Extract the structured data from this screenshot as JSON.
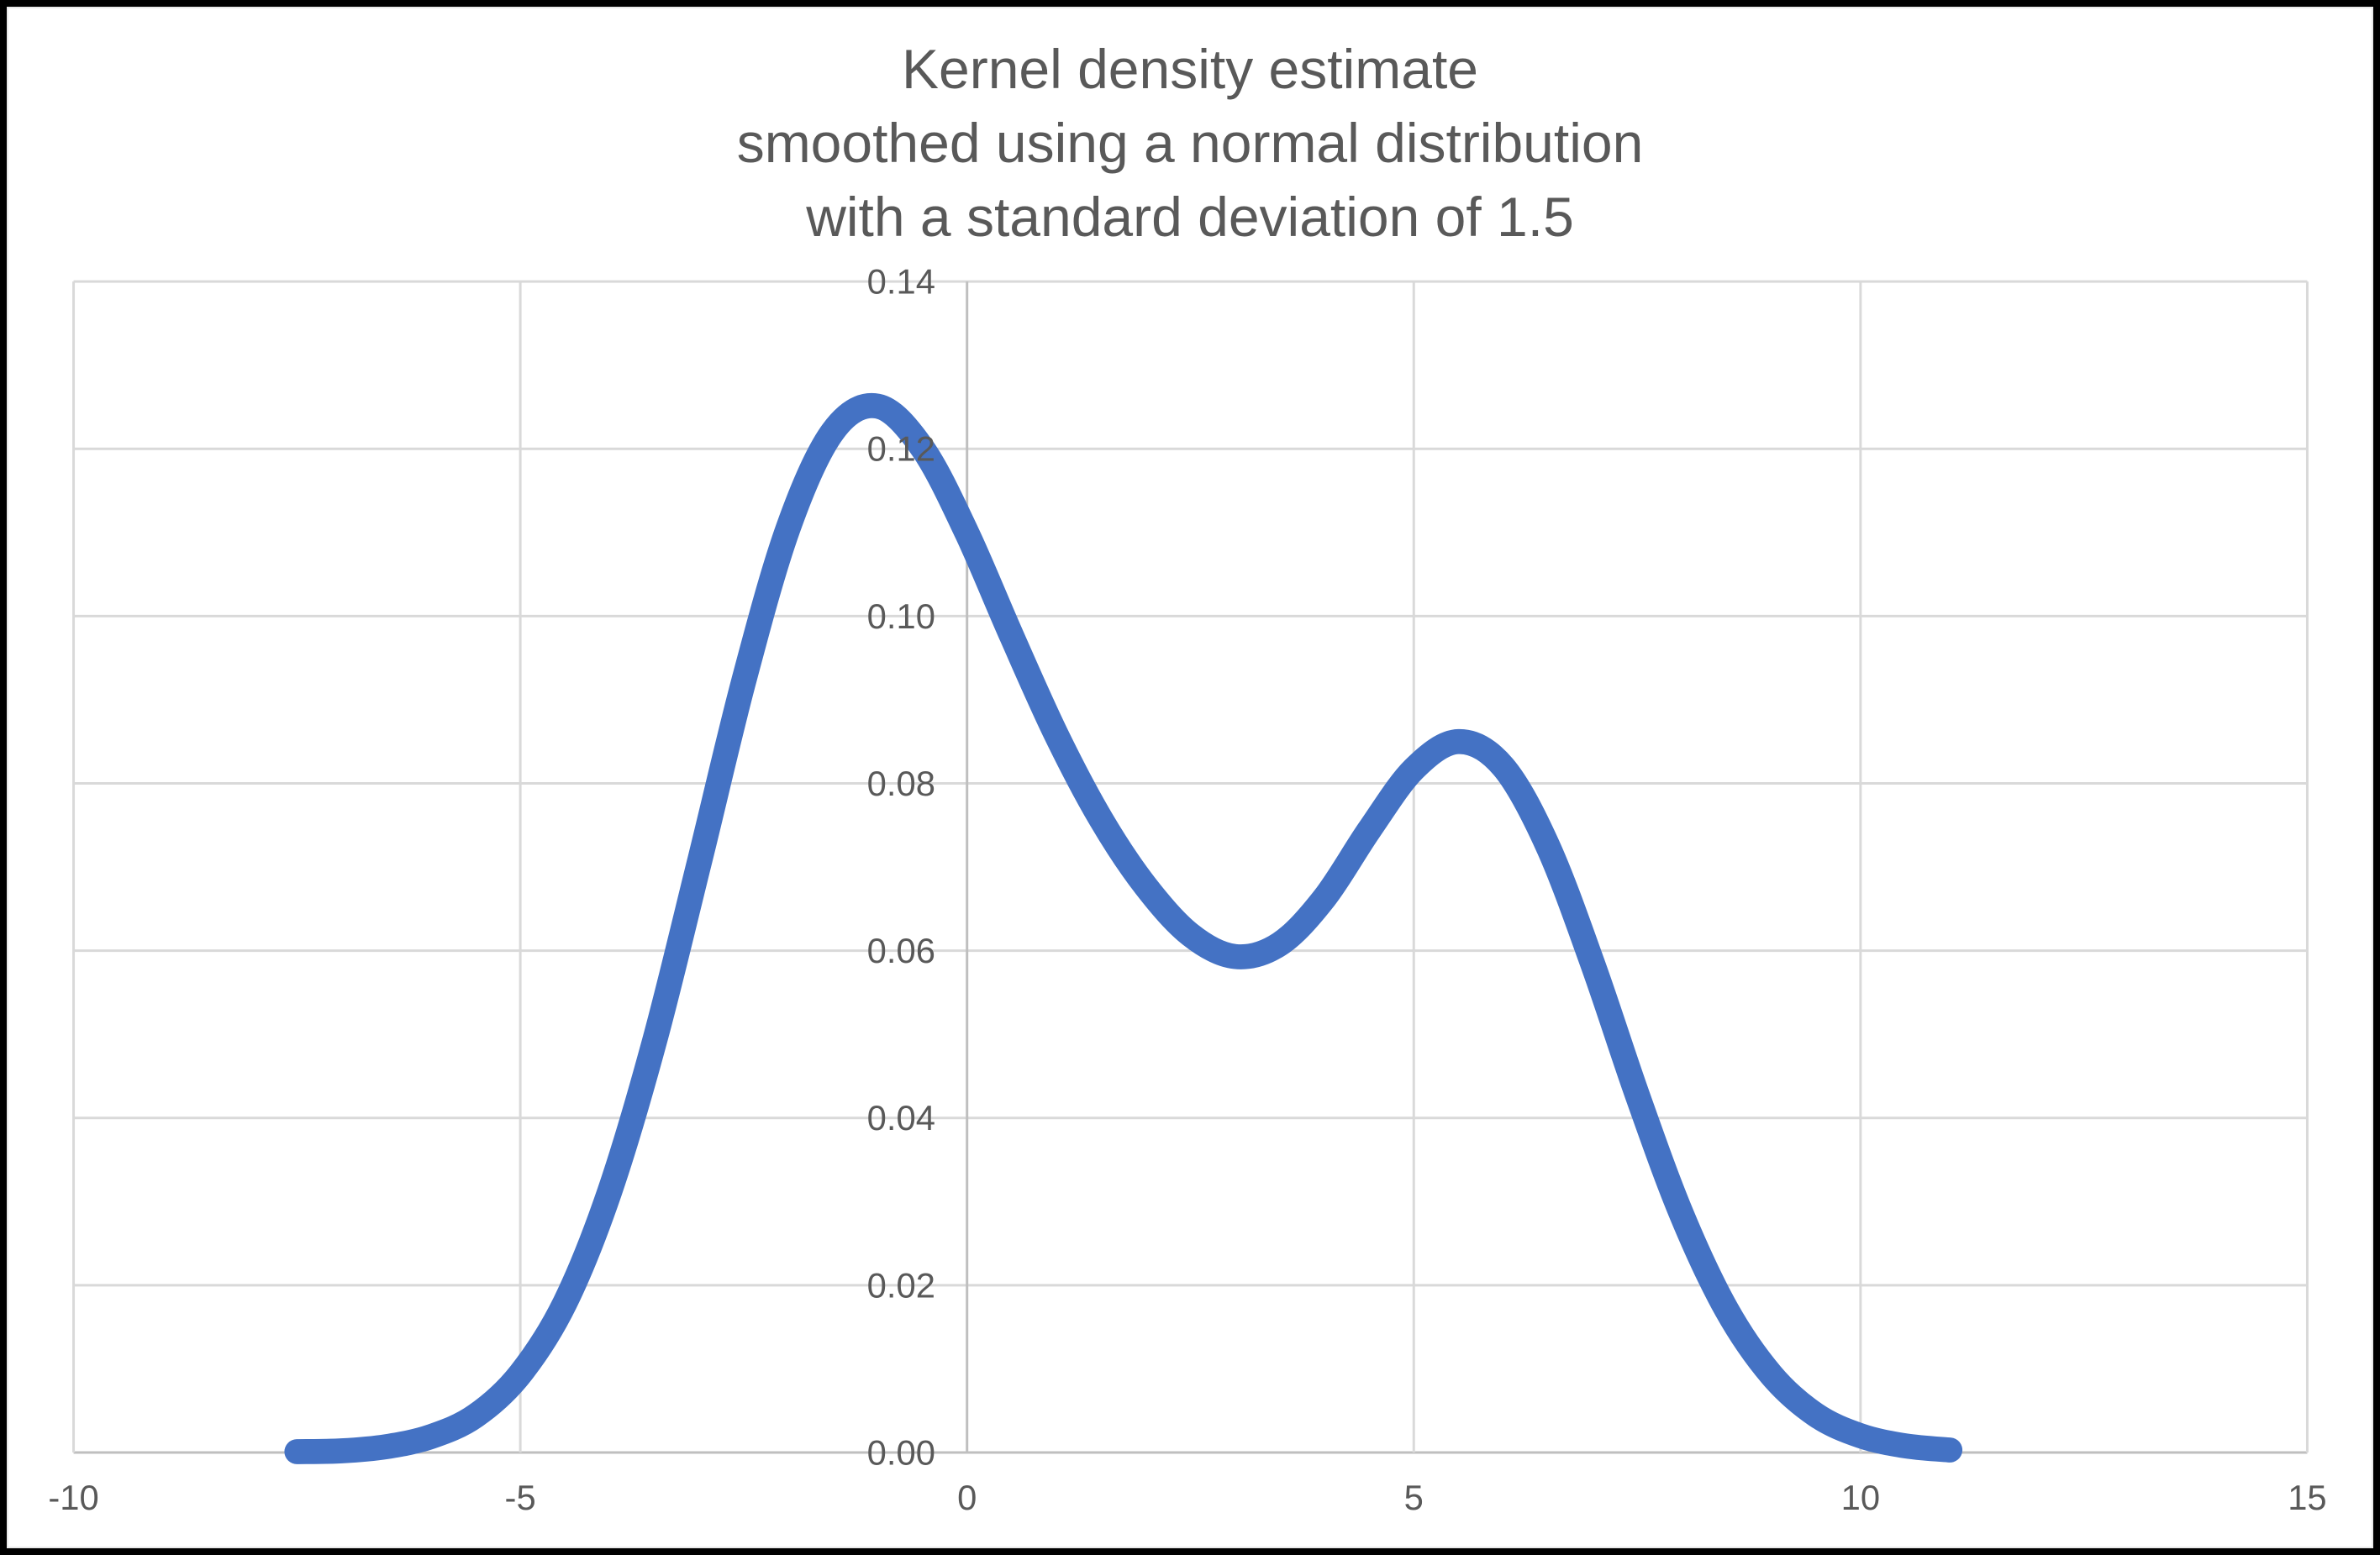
{
  "chart_data": {
    "type": "line",
    "title": "Kernel density estimate smoothed using a normal distribution with a standard deviation of 1.5",
    "title_lines": [
      "Kernel density estimate",
      "smoothed using a normal distribution",
      "with a standard deviation of 1.5"
    ],
    "xlabel": "",
    "ylabel": "",
    "xlim": [
      -10,
      15
    ],
    "ylim": [
      0,
      0.14
    ],
    "grid": true,
    "legend": "none",
    "x_ticks": [
      {
        "v": -10,
        "label": "-10"
      },
      {
        "v": -5,
        "label": "-5"
      },
      {
        "v": 0,
        "label": "0"
      },
      {
        "v": 5,
        "label": "5"
      },
      {
        "v": 10,
        "label": "10"
      },
      {
        "v": 15,
        "label": "15"
      }
    ],
    "y_ticks": [
      {
        "v": 0,
        "label": "0.00"
      },
      {
        "v": 0.02,
        "label": "0.02"
      },
      {
        "v": 0.04,
        "label": "0.04"
      },
      {
        "v": 0.06,
        "label": "0.06"
      },
      {
        "v": 0.08,
        "label": "0.08"
      },
      {
        "v": 0.1,
        "label": "0.10"
      },
      {
        "v": 0.12,
        "label": "0.12"
      },
      {
        "v": 0.14,
        "label": "0.14"
      }
    ],
    "colors": {
      "line": "#4472C4",
      "gridline": "#D9D9D9",
      "axis_line": "#BFBFBF",
      "text": "#595959",
      "background": "#FFFFFF",
      "frame_border": "#000000"
    },
    "series": [
      {
        "name": "Kernel density estimate",
        "color": "#4472C4",
        "points": [
          [
            -7.5,
            0.0001
          ],
          [
            -7,
            0.0002
          ],
          [
            -6.5,
            0.0007
          ],
          [
            -6,
            0.0019
          ],
          [
            -5.5,
            0.0044
          ],
          [
            -5,
            0.0094
          ],
          [
            -4.5,
            0.0179
          ],
          [
            -4,
            0.0312
          ],
          [
            -3.5,
            0.0491
          ],
          [
            -3,
            0.0704
          ],
          [
            -2.5,
            0.0922
          ],
          [
            -2,
            0.1106
          ],
          [
            -1.5,
            0.1221
          ],
          [
            -1,
            0.1251
          ],
          [
            -0.5,
            0.1201
          ],
          [
            0,
            0.1099
          ],
          [
            0.5,
            0.0976
          ],
          [
            1,
            0.0858
          ],
          [
            1.5,
            0.0757
          ],
          [
            2,
            0.0677
          ],
          [
            2.5,
            0.0619
          ],
          [
            3,
            0.0593
          ],
          [
            3.5,
            0.0608
          ],
          [
            4,
            0.0663
          ],
          [
            4.5,
            0.0744
          ],
          [
            5,
            0.0817
          ],
          [
            5.5,
            0.085
          ],
          [
            6,
            0.082
          ],
          [
            6.5,
            0.0725
          ],
          [
            7,
            0.0585
          ],
          [
            7.5,
            0.0428
          ],
          [
            8,
            0.0284
          ],
          [
            8.5,
            0.0171
          ],
          [
            9,
            0.0093
          ],
          [
            9.5,
            0.0045
          ],
          [
            10,
            0.002
          ],
          [
            10.5,
            0.0008
          ],
          [
            11,
            0.0003
          ]
        ]
      }
    ]
  }
}
